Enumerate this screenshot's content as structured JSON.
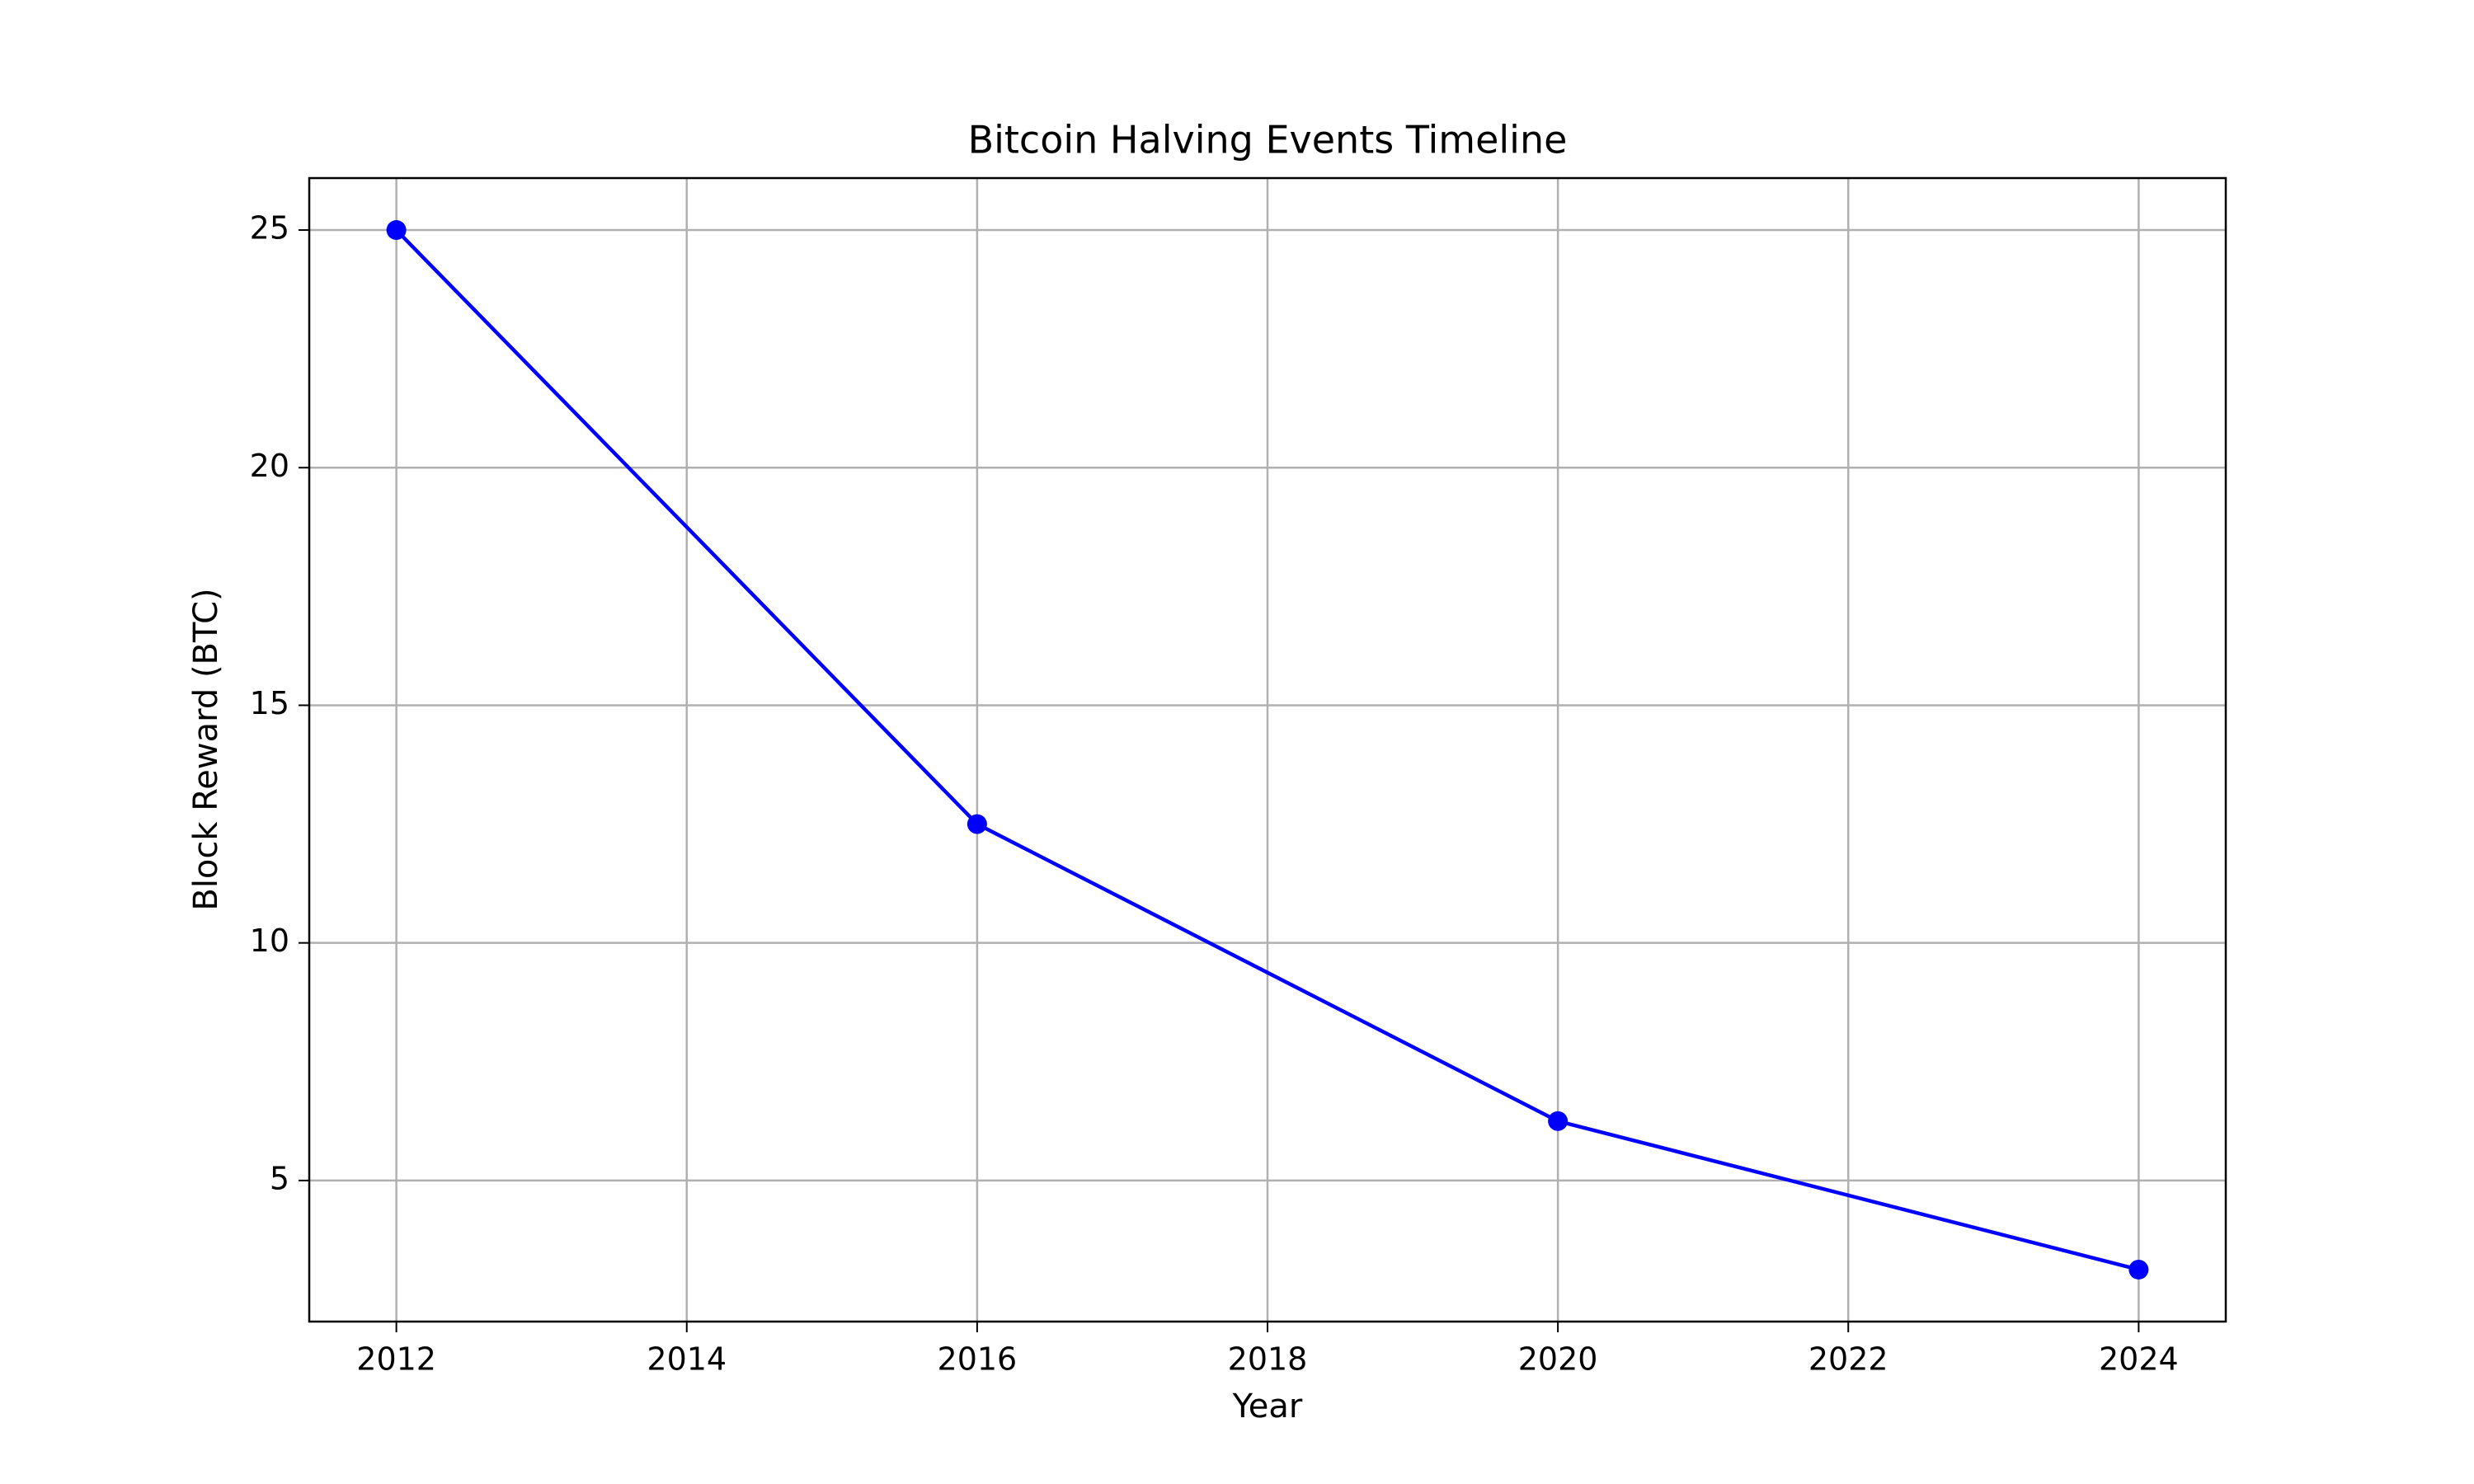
{
  "chart_data": {
    "type": "line",
    "title": "Bitcoin Halving Events Timeline",
    "x_label": "Year",
    "y_label": "Block Reward (BTC)",
    "x": [
      2012,
      2016,
      2020,
      2024
    ],
    "values": [
      25,
      12.5,
      6.25,
      3.125
    ],
    "color": "#0000ff",
    "xlim": [
      2011.4,
      2024.6
    ],
    "xticks": [
      2012,
      2014,
      2016,
      2018,
      2020,
      2022,
      2024
    ],
    "ylim": [
      2.03125,
      26.09375
    ],
    "yticks": [
      5,
      10,
      15,
      20,
      25
    ],
    "grid": true
  }
}
